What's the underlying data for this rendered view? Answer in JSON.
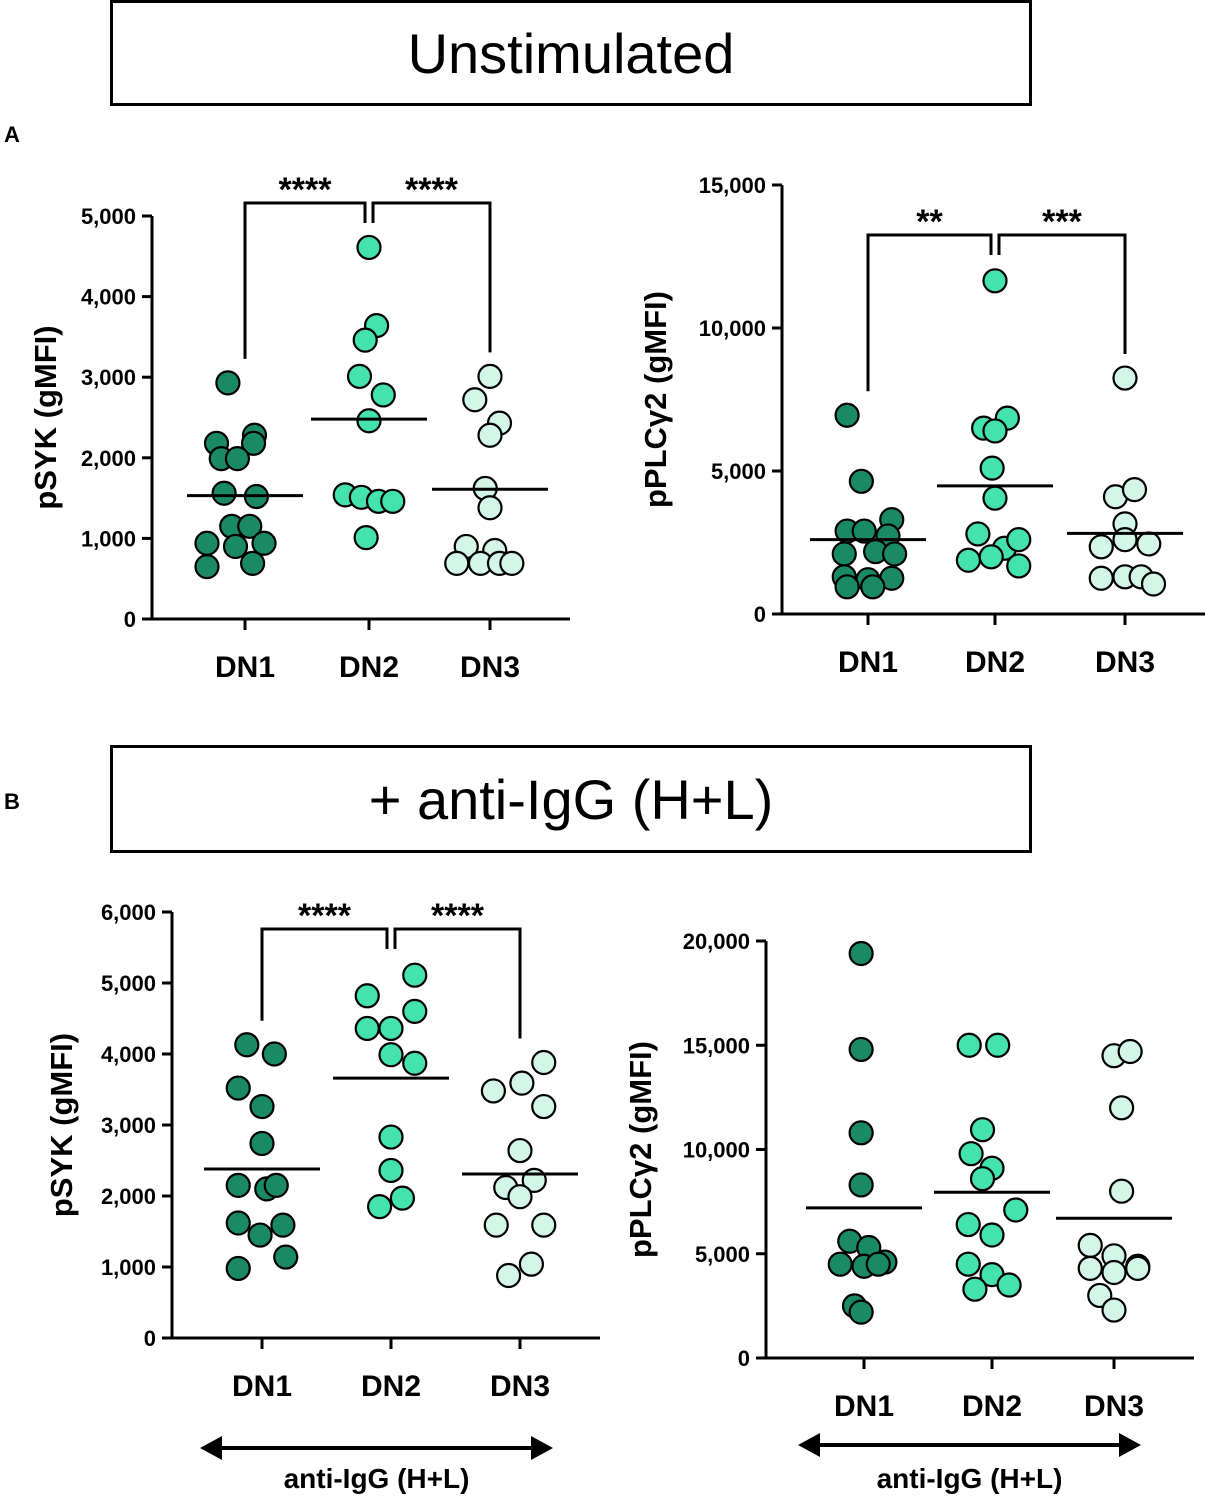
{
  "header_a": "Unstimulated",
  "header_b": "+ anti-IgG (H+L)",
  "panel_a_label": "A",
  "panel_b_label": "B",
  "colors": {
    "DN1": "#1a8a64",
    "DN2": "#44e2ad",
    "DN3": "#d4f6e8",
    "stroke": "#000000"
  },
  "chart_data": [
    {
      "id": "a-left",
      "type": "scatter",
      "ylabel": "pSYK (gMFI)",
      "categories": [
        "DN1",
        "DN2",
        "DN3"
      ],
      "ylim": [
        0,
        5000
      ],
      "yticks": [
        0,
        1000,
        2000,
        3000,
        4000,
        5000
      ],
      "yticklabels": [
        "0",
        "1,000",
        "2,000",
        "3,000",
        "4,000",
        "5,000"
      ],
      "series": [
        {
          "name": "DN1",
          "mean": 1530,
          "points": [
            [
              -0.18,
              2930
            ],
            [
              -0.3,
              2180
            ],
            [
              0.1,
              2280
            ],
            [
              0.09,
              2180
            ],
            [
              -0.25,
              1990
            ],
            [
              -0.08,
              1990
            ],
            [
              -0.22,
              1560
            ],
            [
              0.12,
              1520
            ],
            [
              -0.14,
              1150
            ],
            [
              0.05,
              1150
            ],
            [
              -0.4,
              940
            ],
            [
              -0.1,
              900
            ],
            [
              0.2,
              940
            ],
            [
              -0.4,
              650
            ],
            [
              0.08,
              690
            ]
          ]
        },
        {
          "name": "DN2",
          "mean": 2480,
          "points": [
            [
              0.0,
              4610
            ],
            [
              0.08,
              3640
            ],
            [
              -0.04,
              3460
            ],
            [
              -0.1,
              3010
            ],
            [
              0.15,
              2780
            ],
            [
              0.0,
              2460
            ],
            [
              -0.25,
              1540
            ],
            [
              -0.08,
              1510
            ],
            [
              0.1,
              1460
            ],
            [
              0.25,
              1460
            ],
            [
              -0.03,
              1010
            ]
          ]
        },
        {
          "name": "DN3",
          "mean": 1610,
          "points": [
            [
              0.0,
              3010
            ],
            [
              -0.16,
              2720
            ],
            [
              0.1,
              2430
            ],
            [
              0.0,
              2280
            ],
            [
              -0.05,
              1620
            ],
            [
              0.0,
              1380
            ],
            [
              -0.25,
              900
            ],
            [
              0.05,
              850
            ],
            [
              -0.35,
              690
            ],
            [
              -0.1,
              690
            ],
            [
              0.1,
              690
            ],
            [
              0.23,
              690
            ]
          ]
        }
      ],
      "brackets": [
        {
          "from": "DN1",
          "to": "DN2",
          "label": "****"
        },
        {
          "from": "DN2",
          "to": "DN3",
          "label": "****"
        }
      ]
    },
    {
      "id": "a-right",
      "type": "scatter",
      "ylabel": "pPLCγ2 (gMFI)",
      "categories": [
        "DN1",
        "DN2",
        "DN3"
      ],
      "ylim": [
        0,
        15000
      ],
      "yticks": [
        0,
        5000,
        10000,
        15000
      ],
      "yticklabels": [
        "0",
        "5,000",
        "10,000",
        "15,000"
      ],
      "series": [
        {
          "name": "DN1",
          "mean": 2600,
          "points": [
            [
              -0.22,
              6950
            ],
            [
              -0.07,
              4640
            ],
            [
              0.25,
              3300
            ],
            [
              -0.22,
              2900
            ],
            [
              -0.04,
              2900
            ],
            [
              0.21,
              2730
            ],
            [
              -0.25,
              2100
            ],
            [
              0.08,
              2180
            ],
            [
              0.28,
              2100
            ],
            [
              -0.25,
              1300
            ],
            [
              0.0,
              1200
            ],
            [
              0.25,
              1250
            ],
            [
              -0.22,
              950
            ],
            [
              0.05,
              950
            ]
          ]
        },
        {
          "name": "DN2",
          "mean": 4480,
          "points": [
            [
              0.0,
              11650
            ],
            [
              0.13,
              6850
            ],
            [
              -0.12,
              6500
            ],
            [
              0.0,
              6400
            ],
            [
              -0.03,
              5100
            ],
            [
              0.0,
              4050
            ],
            [
              -0.18,
              2800
            ],
            [
              0.1,
              2300
            ],
            [
              0.25,
              2600
            ],
            [
              -0.04,
              2000
            ],
            [
              -0.28,
              1880
            ],
            [
              0.25,
              1680
            ]
          ]
        },
        {
          "name": "DN3",
          "mean": 2820,
          "points": [
            [
              0.0,
              8250
            ],
            [
              -0.1,
              4100
            ],
            [
              0.1,
              4350
            ],
            [
              0.0,
              3150
            ],
            [
              -0.25,
              2350
            ],
            [
              0.0,
              2600
            ],
            [
              0.25,
              2450
            ],
            [
              -0.25,
              1250
            ],
            [
              0.0,
              1300
            ],
            [
              0.17,
              1300
            ],
            [
              0.3,
              1050
            ]
          ]
        }
      ],
      "brackets": [
        {
          "from": "DN1",
          "to": "DN2",
          "label": "**"
        },
        {
          "from": "DN2",
          "to": "DN3",
          "label": "***"
        }
      ]
    },
    {
      "id": "b-left",
      "type": "scatter",
      "ylabel": "pSYK (gMFI)",
      "categories": [
        "DN1",
        "DN2",
        "DN3"
      ],
      "ylim": [
        0,
        6000
      ],
      "yticks": [
        0,
        1000,
        2000,
        3000,
        4000,
        5000,
        6000
      ],
      "yticklabels": [
        "0",
        "1,000",
        "2,000",
        "3,000",
        "4,000",
        "5,000",
        "6,000"
      ],
      "series": [
        {
          "name": "DN1",
          "mean": 2380,
          "points": [
            [
              -0.16,
              4130
            ],
            [
              0.13,
              4000
            ],
            [
              -0.25,
              3520
            ],
            [
              0.0,
              3260
            ],
            [
              0.0,
              2740
            ],
            [
              -0.25,
              2150
            ],
            [
              0.05,
              2100
            ],
            [
              0.15,
              2150
            ],
            [
              -0.25,
              1620
            ],
            [
              0.22,
              1590
            ],
            [
              -0.02,
              1450
            ],
            [
              0.25,
              1140
            ],
            [
              -0.25,
              980
            ]
          ]
        },
        {
          "name": "DN2",
          "mean": 3660,
          "points": [
            [
              0.25,
              5110
            ],
            [
              -0.25,
              4820
            ],
            [
              0.25,
              4600
            ],
            [
              -0.25,
              4360
            ],
            [
              0.0,
              4360
            ],
            [
              0.0,
              3990
            ],
            [
              0.25,
              3870
            ],
            [
              0.0,
              2830
            ],
            [
              0.0,
              2360
            ],
            [
              0.12,
              1970
            ],
            [
              -0.12,
              1850
            ]
          ]
        },
        {
          "name": "DN3",
          "mean": 2310,
          "points": [
            [
              0.25,
              3880
            ],
            [
              0.02,
              3590
            ],
            [
              -0.28,
              3480
            ],
            [
              0.25,
              3260
            ],
            [
              0.0,
              2640
            ],
            [
              0.15,
              2220
            ],
            [
              -0.15,
              2120
            ],
            [
              0.0,
              1990
            ],
            [
              -0.25,
              1590
            ],
            [
              0.25,
              1590
            ],
            [
              0.12,
              1040
            ],
            [
              -0.12,
              880
            ]
          ]
        }
      ],
      "brackets": [
        {
          "from": "DN1",
          "to": "DN2",
          "label": "****"
        },
        {
          "from": "DN2",
          "to": "DN3",
          "label": "****"
        }
      ],
      "arrow_label": "anti-IgG (H+L)"
    },
    {
      "id": "b-right",
      "type": "scatter",
      "ylabel": "pPLCγ2 (gMFI)",
      "categories": [
        "DN1",
        "DN2",
        "DN3"
      ],
      "ylim": [
        0,
        20000
      ],
      "yticks": [
        0,
        5000,
        10000,
        15000,
        20000
      ],
      "yticklabels": [
        "0",
        "5,000",
        "10,000",
        "15,000",
        "20,000"
      ],
      "series": [
        {
          "name": "DN1",
          "mean": 7200,
          "points": [
            [
              -0.03,
              19400
            ],
            [
              -0.03,
              14800
            ],
            [
              -0.03,
              10800
            ],
            [
              -0.03,
              8300
            ],
            [
              -0.15,
              5600
            ],
            [
              0.05,
              5300
            ],
            [
              0.22,
              4600
            ],
            [
              -0.25,
              4500
            ],
            [
              0.0,
              4400
            ],
            [
              0.15,
              4500
            ],
            [
              -0.1,
              2500
            ],
            [
              -0.03,
              2200
            ]
          ]
        },
        {
          "name": "DN2",
          "mean": 7950,
          "points": [
            [
              -0.24,
              15000
            ],
            [
              0.06,
              15000
            ],
            [
              -0.1,
              10950
            ],
            [
              0.0,
              9100
            ],
            [
              -0.22,
              9800
            ],
            [
              -0.1,
              8600
            ],
            [
              0.25,
              7100
            ],
            [
              -0.25,
              6400
            ],
            [
              0.0,
              5900
            ],
            [
              -0.25,
              4500
            ],
            [
              0.0,
              4000
            ],
            [
              0.18,
              3500
            ],
            [
              -0.18,
              3300
            ]
          ]
        },
        {
          "name": "DN3",
          "mean": 6700,
          "points": [
            [
              0.0,
              14500
            ],
            [
              0.17,
              14700
            ],
            [
              0.08,
              12000
            ],
            [
              0.08,
              8000
            ],
            [
              -0.25,
              5400
            ],
            [
              0.0,
              4900
            ],
            [
              0.25,
              4400
            ],
            [
              -0.25,
              4300
            ],
            [
              0.0,
              4100
            ],
            [
              0.25,
              4300
            ],
            [
              -0.15,
              3000
            ],
            [
              0.0,
              2300
            ]
          ]
        }
      ],
      "arrow_label": "anti-IgG (H+L)"
    }
  ]
}
